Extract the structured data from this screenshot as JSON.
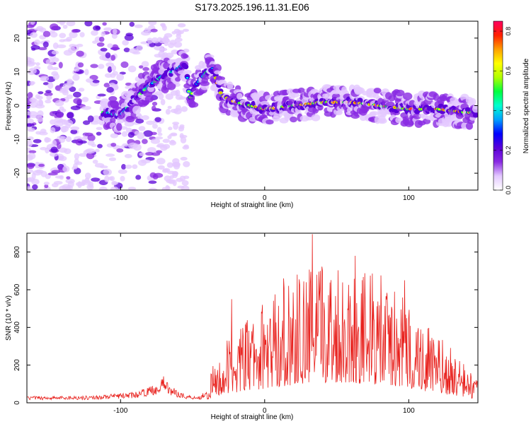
{
  "title": "S173.2025.196.11.31.E06",
  "chart_data": [
    {
      "type": "heatmap",
      "xlabel": "Height of straight line (km)",
      "ylabel": "Frequency (Hz)",
      "xlim": [
        -165,
        148
      ],
      "ylim": [
        -25,
        25
      ],
      "xticks": [
        -100,
        0,
        100
      ],
      "yticks": [
        -20,
        -10,
        0,
        10,
        20
      ],
      "colorbar": {
        "label": "Normalized spectral amplitude",
        "range": [
          0.0,
          0.85
        ],
        "ticks": [
          "0.0",
          "0.2",
          "0.4",
          "0.6",
          "0.8"
        ],
        "colors": [
          "#ffffff",
          "#e3c8ff",
          "#8a2be2",
          "#5a00d8",
          "#0000ff",
          "#00a0ff",
          "#00ffd0",
          "#00ff40",
          "#b0ff00",
          "#ffff00",
          "#ffa000",
          "#ff2000",
          "#ff0060"
        ]
      },
      "ridge": {
        "x": [
          -110,
          -100,
          -90,
          -80,
          -70,
          -60,
          -55,
          -52,
          -48,
          -44,
          -40,
          -36,
          -30,
          -20,
          -10,
          0,
          20,
          40,
          60,
          80,
          100,
          120,
          140,
          148
        ],
        "y": [
          -2,
          -3,
          2,
          6,
          9,
          11,
          13,
          2,
          6,
          8,
          10,
          11,
          3,
          1,
          0,
          -1,
          0,
          1,
          1,
          0,
          -1,
          -1,
          -2,
          -2
        ]
      }
    },
    {
      "type": "line",
      "xlabel": "Height of straight line (km)",
      "ylabel": "SNR (10 * v/v)",
      "xlim": [
        -165,
        148
      ],
      "ylim": [
        0,
        900
      ],
      "xticks": [
        -100,
        0,
        100
      ],
      "yticks": [
        0,
        200,
        400,
        600,
        800
      ],
      "color": "#e8201c",
      "envelope": {
        "x": [
          -165,
          -120,
          -90,
          -75,
          -70,
          -65,
          -55,
          -45,
          -40,
          -35,
          -30,
          -20,
          -10,
          0,
          10,
          20,
          30,
          40,
          50,
          60,
          70,
          80,
          90,
          100,
          110,
          120,
          130,
          140,
          148
        ],
        "y": [
          28,
          30,
          45,
          80,
          110,
          70,
          35,
          30,
          60,
          110,
          160,
          220,
          260,
          300,
          340,
          380,
          400,
          420,
          430,
          420,
          400,
          380,
          340,
          300,
          250,
          200,
          160,
          110,
          70
        ]
      },
      "peaks": [
        {
          "x": -70,
          "y": 140
        },
        {
          "x": -36,
          "y": 195
        },
        {
          "x": -23,
          "y": 550
        },
        {
          "x": 13,
          "y": 660
        },
        {
          "x": 33,
          "y": 895
        },
        {
          "x": 63,
          "y": 780
        },
        {
          "x": 97,
          "y": 650
        }
      ]
    }
  ]
}
